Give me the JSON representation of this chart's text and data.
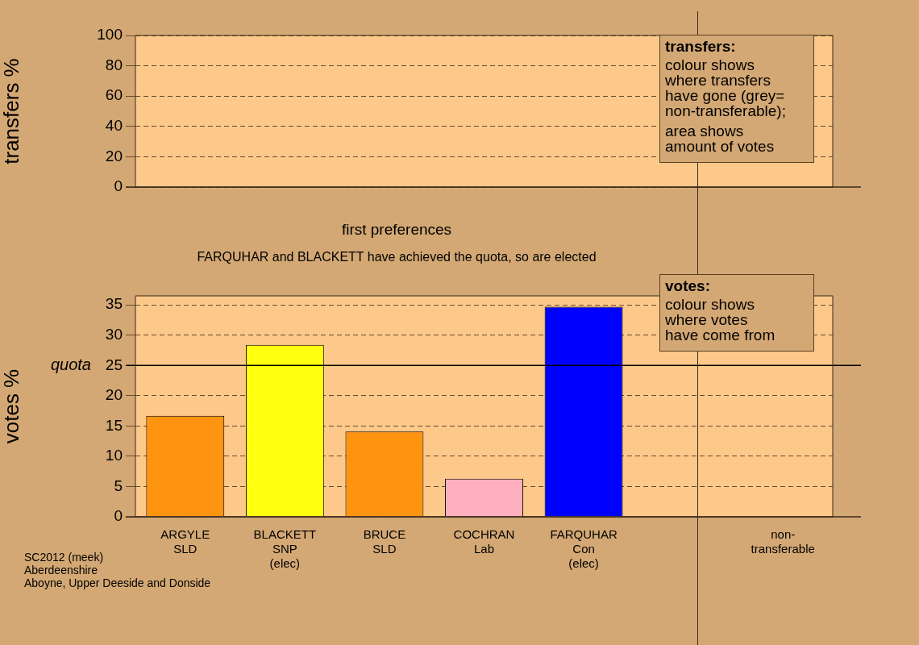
{
  "chart_data": [
    {
      "type": "bar",
      "categories": [
        null,
        null,
        null,
        null,
        null,
        null,
        null
      ],
      "values": [
        null,
        null,
        null,
        null,
        null,
        null,
        null
      ],
      "ylabel": "transfers %",
      "ylim": [
        0,
        100
      ],
      "yticks": [
        0,
        20,
        40,
        60,
        80,
        100
      ],
      "grid": "y",
      "legend": false,
      "tick_labels": "y",
      "annotations": [
        "transfers:\ncolour shows\nwhere transfers\nhave gone (grey=\nnon-transferable);\n\narea shows\namount of votes"
      ]
    },
    {
      "type": "bar",
      "title": "first preferences",
      "subtitle": "FARQUHAR and BLACKETT have achieved the quota, so are elected",
      "categories": [
        "ARGYLE\nSLD",
        "BLACKETT\nSNP\n(elec)",
        "BRUCE\nSLD",
        "COCHRAN\nLab",
        "FARQUHAR\nCon\n(elec)",
        null,
        "non-\ntransferable"
      ],
      "values": [
        16.7,
        28.4,
        14.1,
        6.3,
        34.7,
        null,
        null
      ],
      "colors": [
        "#ff9410",
        "#ffff10",
        "#ff9410",
        "#ffb0c0",
        "#0000ff",
        "#808080",
        "#808080"
      ],
      "ylabel": "votes %",
      "ylim": [
        0,
        36.5
      ],
      "yticks": [
        0,
        5,
        10,
        15,
        20,
        25,
        30,
        35
      ],
      "grid": "y",
      "legend": false,
      "ref_lines": [
        {
          "axis": "y",
          "value": 25,
          "label": "quota",
          "color": "#000000"
        }
      ],
      "annotations": [
        "votes:\ncolour shows\nwhere votes\nhave come from",
        "SC2012 (meek)\nAberdeenshire\nAboyne, Upper Deeside and Donside"
      ]
    }
  ]
}
